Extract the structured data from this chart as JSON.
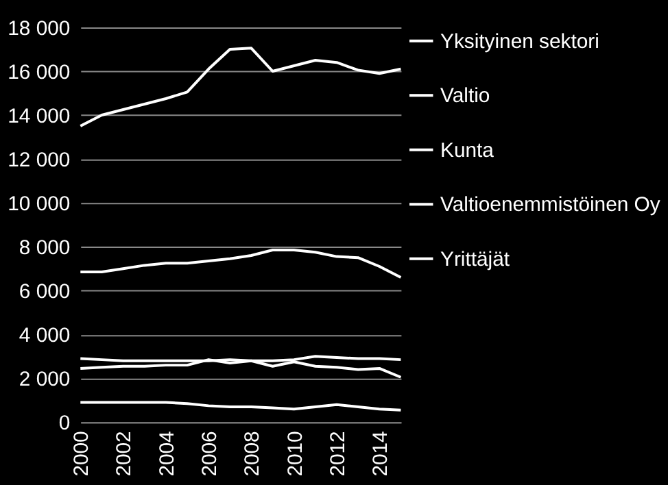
{
  "chart_data": {
    "type": "line",
    "x": [
      2000,
      2001,
      2002,
      2003,
      2004,
      2005,
      2006,
      2007,
      2008,
      2009,
      2010,
      2011,
      2012,
      2013,
      2014,
      2015
    ],
    "series": [
      {
        "name": "Yksityinen sektori",
        "color": "#ffffff",
        "values": [
          13500,
          14000,
          14250,
          14500,
          14750,
          15050,
          16100,
          17000,
          17050,
          16000,
          16250,
          16500,
          16400,
          16050,
          15900,
          16100
        ]
      },
      {
        "name": "Valtio",
        "color": "#ffffff",
        "values": [
          2900,
          2850,
          2800,
          2800,
          2800,
          2800,
          2800,
          2850,
          2800,
          2800,
          2850,
          3000,
          2950,
          2900,
          2900,
          2850
        ]
      },
      {
        "name": "Kunta",
        "color": "#ffffff",
        "values": [
          6850,
          6850,
          7000,
          7150,
          7250,
          7250,
          7350,
          7450,
          7600,
          7850,
          7850,
          7750,
          7550,
          7500,
          7100,
          6600
        ]
      },
      {
        "name": "Valtioenemmistöinen Oy",
        "color": "#ffffff",
        "values": [
          900,
          900,
          900,
          900,
          900,
          850,
          750,
          700,
          700,
          650,
          600,
          700,
          800,
          700,
          600,
          550
        ]
      },
      {
        "name": "Yrittäjät",
        "color": "#ffffff",
        "values": [
          2450,
          2500,
          2550,
          2550,
          2600,
          2600,
          2850,
          2700,
          2800,
          2550,
          2750,
          2550,
          2500,
          2400,
          2450,
          2050
        ]
      }
    ],
    "xlim": [
      2000,
      2015
    ],
    "xticks": [
      2000,
      2002,
      2004,
      2006,
      2008,
      2010,
      2012,
      2014
    ],
    "ylim": [
      0,
      18000
    ],
    "yticks": [
      {
        "value": 0,
        "label": "0"
      },
      {
        "value": 2000,
        "label": "2 000"
      },
      {
        "value": 4000,
        "label": "4 000"
      },
      {
        "value": 6000,
        "label": "6 000"
      },
      {
        "value": 8000,
        "label": "8 000"
      },
      {
        "value": 10000,
        "label": "10 000"
      },
      {
        "value": 12000,
        "label": "12 000"
      },
      {
        "value": 14000,
        "label": "14 000"
      },
      {
        "value": 16000,
        "label": "16 000"
      },
      {
        "value": 18000,
        "label": "18 000"
      }
    ],
    "grid": "y",
    "legend": "right",
    "marker": "none",
    "line_style": "solid"
  }
}
